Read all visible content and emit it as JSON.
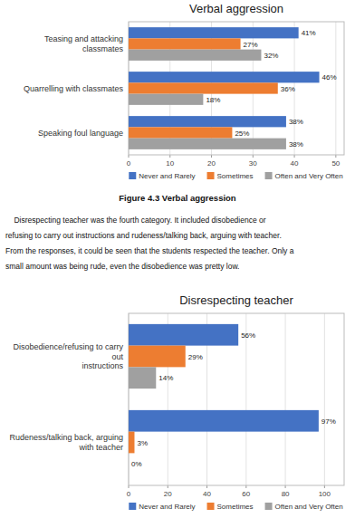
{
  "chart_data": [
    {
      "type": "bar",
      "orientation": "horizontal",
      "title": "Verbal aggression",
      "categories": [
        "Speaking foul language",
        "Quarrelling with classmates",
        "Teasing and attacking classmates"
      ],
      "series": [
        {
          "name": "Never and Rarely",
          "color": "#4472c4",
          "values": [
            38,
            46,
            41
          ],
          "value_labels": [
            "38%",
            "46%",
            "41%"
          ]
        },
        {
          "name": "Sometimes",
          "color": "#ed7d31",
          "values": [
            25,
            36,
            27
          ],
          "value_labels": [
            "25%",
            "36%",
            "27%"
          ]
        },
        {
          "name": "Often and Very Often",
          "color": "#a0a0a0",
          "values": [
            38,
            18,
            32
          ],
          "value_labels": [
            "38%",
            "18%",
            "32%"
          ]
        }
      ],
      "xlim": [
        0,
        52
      ],
      "xticks": [
        0,
        10,
        20,
        30,
        40,
        50
      ],
      "grid": true,
      "legend": "bottom",
      "data_labels": true
    },
    {
      "type": "bar",
      "orientation": "horizontal",
      "title": "Disrespecting teacher",
      "categories": [
        "Rudeness/talking back, arguing with teacher",
        "Disobedience/refusing to carry out\ninstructions"
      ],
      "series": [
        {
          "name": "Never and Rarely",
          "color": "#4472c4",
          "values": [
            97,
            56
          ],
          "value_labels": [
            "97%",
            "56%"
          ]
        },
        {
          "name": "Sometimes",
          "color": "#ed7d31",
          "values": [
            3,
            29
          ],
          "value_labels": [
            "3%",
            "29%"
          ]
        },
        {
          "name": "Often and Very Often",
          "color": "#a0a0a0",
          "values": [
            0,
            14
          ],
          "value_labels": [
            "0%",
            "14%"
          ]
        }
      ],
      "xlim": [
        0,
        110
      ],
      "xticks": [
        0,
        20,
        40,
        60,
        80,
        100
      ],
      "grid": true,
      "legend": "bottom",
      "data_labels": true
    }
  ],
  "figure_caption": "Figure 4.3 Verbal aggression",
  "body_lines": [
    "    Disrespecting teacher was the fourth category. It included disobedience or",
    "refusing to carry out instructions and rudeness/talking back, arguing with teacher.",
    "From the responses, it could be seen that the students respected the teacher. Only a",
    "small amount was being rude, even the disobedience was pretty low."
  ]
}
